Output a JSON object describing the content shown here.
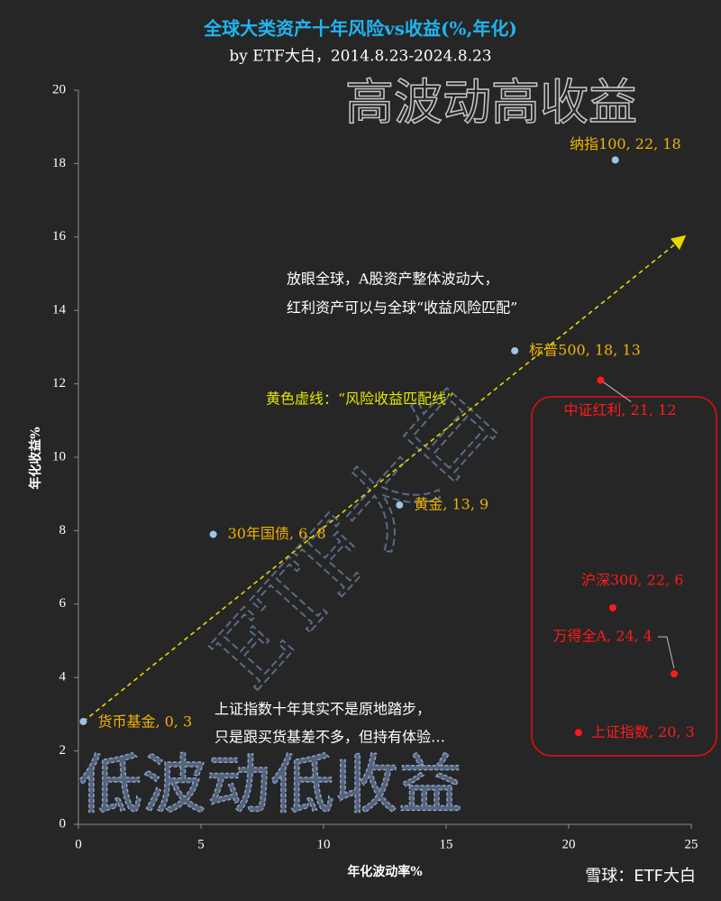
{
  "chart_data": {
    "type": "scatter",
    "title": "全球大类资产十年风险vs收益(%,年化)",
    "subtitle": "by ETF大白，2014.8.23-2024.8.23",
    "xlabel": "年化波动率%",
    "ylabel": "年化收益%",
    "xlim": [
      0,
      25
    ],
    "xticks": [
      0,
      5,
      10,
      15,
      20,
      25
    ],
    "ylim": [
      0,
      20
    ],
    "yticks": [
      0,
      2,
      4,
      6,
      8,
      10,
      12,
      14,
      16,
      18,
      20
    ],
    "grid": false,
    "series": [
      {
        "color": "#9dc3e6",
        "label_color": "#f0b400",
        "x": [
          21.9,
          17.8,
          13.1,
          5.5,
          0.2
        ],
        "y": [
          18.1,
          12.9,
          8.7,
          7.9,
          2.8
        ],
        "labels": [
          "纳指100, 22, 18",
          "标普500, 18, 13",
          "黄金, 13, 9",
          "30年国债, 6, 8",
          "货币基金, 0, 3"
        ]
      },
      {
        "color": "#ff1a1a",
        "label_color": "#ff1a1a",
        "x": [
          21.3,
          21.8,
          24.3,
          20.4
        ],
        "y": [
          12.1,
          5.9,
          4.1,
          2.5
        ],
        "labels": [
          "中证红利, 21, 12",
          "沪深300, 22, 6",
          "万得全A, 24, 4",
          "上证指数, 20, 3"
        ]
      }
    ],
    "trend_line": {
      "x": [
        0.2,
        24.7
      ],
      "y": [
        2.8,
        16
      ],
      "color": "#e6d800"
    },
    "annotations": [
      "高波动高收益",
      "低波动低收益",
      "放眼全球，A股资产整体波动大，",
      "红利资产可以与全球“收益风险匹配”",
      "黄色虚线：“风险收益匹配线”",
      "上证指数十年其实不是原地踏步，",
      "只是跟买货基差不多，但持有体验…"
    ],
    "watermark": "ETF大白",
    "footer": "雪球：ETF大白"
  }
}
